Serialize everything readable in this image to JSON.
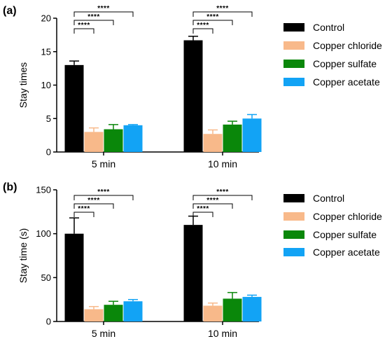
{
  "chart_data": [
    {
      "type": "bar",
      "panel_label": "(a)",
      "ylabel": "Stay times",
      "categories": [
        "5 min",
        "10 min"
      ],
      "ylim": [
        0,
        20
      ],
      "yticks": [
        "0",
        "5",
        "10",
        "15",
        "20"
      ],
      "legend": "right",
      "grid": false,
      "series": [
        {
          "name": "Control",
          "color": "#000000",
          "values": [
            13.0,
            16.7
          ],
          "errors": [
            0.6,
            0.6
          ]
        },
        {
          "name": "Copper chloride",
          "color": "#f8b98a",
          "values": [
            3.0,
            2.7
          ],
          "errors": [
            0.6,
            0.6
          ]
        },
        {
          "name": "Copper sulfate",
          "color": "#0a870a",
          "values": [
            3.4,
            4.1
          ],
          "errors": [
            0.7,
            0.5
          ]
        },
        {
          "name": "Copper acetate",
          "color": "#12a3f5",
          "values": [
            4.0,
            5.0
          ],
          "errors": [
            0.1,
            0.6
          ]
        }
      ],
      "significance": [
        {
          "category": 0,
          "from": 0,
          "to": 1,
          "label": "****"
        },
        {
          "category": 0,
          "from": 0,
          "to": 2,
          "label": "****"
        },
        {
          "category": 0,
          "from": 0,
          "to": 3,
          "label": "****"
        },
        {
          "category": 1,
          "from": 0,
          "to": 1,
          "label": "****"
        },
        {
          "category": 1,
          "from": 0,
          "to": 2,
          "label": "****"
        },
        {
          "category": 1,
          "from": 0,
          "to": 3,
          "label": "****"
        }
      ]
    },
    {
      "type": "bar",
      "panel_label": "(b)",
      "ylabel": "Stay time (s)",
      "categories": [
        "5 min",
        "10 min"
      ],
      "ylim": [
        0,
        150
      ],
      "yticks": [
        "0",
        "50",
        "100",
        "150"
      ],
      "legend": "right",
      "grid": false,
      "series": [
        {
          "name": "Control",
          "color": "#000000",
          "values": [
            100,
            110
          ],
          "errors": [
            18,
            10
          ]
        },
        {
          "name": "Copper chloride",
          "color": "#f8b98a",
          "values": [
            14,
            18
          ],
          "errors": [
            3,
            3
          ]
        },
        {
          "name": "Copper sulfate",
          "color": "#0a870a",
          "values": [
            19,
            26
          ],
          "errors": [
            4,
            7
          ]
        },
        {
          "name": "Copper acetate",
          "color": "#12a3f5",
          "values": [
            23,
            28
          ],
          "errors": [
            2,
            2
          ]
        }
      ],
      "significance": [
        {
          "category": 0,
          "from": 0,
          "to": 1,
          "label": "****"
        },
        {
          "category": 0,
          "from": 0,
          "to": 2,
          "label": "****"
        },
        {
          "category": 0,
          "from": 0,
          "to": 3,
          "label": "****"
        },
        {
          "category": 1,
          "from": 0,
          "to": 1,
          "label": "****"
        },
        {
          "category": 1,
          "from": 0,
          "to": 2,
          "label": "****"
        },
        {
          "category": 1,
          "from": 0,
          "to": 3,
          "label": "****"
        }
      ]
    }
  ]
}
